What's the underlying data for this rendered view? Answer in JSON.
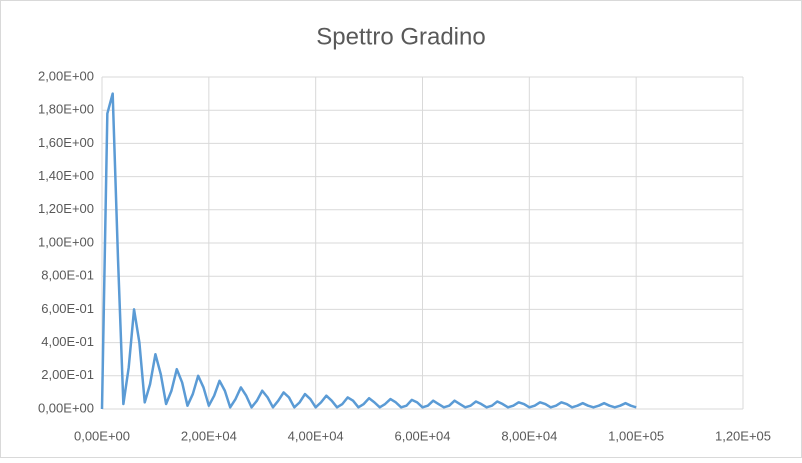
{
  "chart_data": {
    "type": "line",
    "title": "Spettro Gradino",
    "x": [
      0,
      1000,
      2000,
      3000,
      4000,
      5000,
      6000,
      7000,
      8000,
      9000,
      10000,
      11000,
      12000,
      13000,
      14000,
      15000,
      16000,
      17000,
      18000,
      19000,
      20000,
      21000,
      22000,
      23000,
      24000,
      25000,
      26000,
      27000,
      28000,
      29000,
      30000,
      31000,
      32000,
      33000,
      34000,
      35000,
      36000,
      37000,
      38000,
      39000,
      40000,
      41000,
      42000,
      43000,
      44000,
      45000,
      46000,
      47000,
      48000,
      49000,
      50000,
      51000,
      52000,
      53000,
      54000,
      55000,
      56000,
      57000,
      58000,
      59000,
      60000,
      61000,
      62000,
      63000,
      64000,
      65000,
      66000,
      67000,
      68000,
      69000,
      70000,
      71000,
      72000,
      73000,
      74000,
      75000,
      76000,
      77000,
      78000,
      79000,
      80000,
      81000,
      82000,
      83000,
      84000,
      85000,
      86000,
      87000,
      88000,
      89000,
      90000,
      91000,
      92000,
      93000,
      94000,
      95000,
      96000,
      97000,
      98000,
      99000,
      100000
    ],
    "series": [
      {
        "color": "#5b9bd5",
        "values": [
          0,
          1.78,
          1.9,
          0.9,
          0.03,
          0.25,
          0.6,
          0.4,
          0.04,
          0.15,
          0.33,
          0.21,
          0.03,
          0.11,
          0.24,
          0.16,
          0.02,
          0.09,
          0.2,
          0.13,
          0.02,
          0.08,
          0.17,
          0.11,
          0.01,
          0.06,
          0.13,
          0.08,
          0.01,
          0.05,
          0.11,
          0.07,
          0.01,
          0.05,
          0.1,
          0.07,
          0.01,
          0.04,
          0.09,
          0.06,
          0.01,
          0.04,
          0.08,
          0.05,
          0.01,
          0.03,
          0.07,
          0.05,
          0.01,
          0.03,
          0.065,
          0.04,
          0.01,
          0.03,
          0.06,
          0.04,
          0.01,
          0.02,
          0.055,
          0.04,
          0.01,
          0.02,
          0.05,
          0.03,
          0.01,
          0.02,
          0.05,
          0.03,
          0.01,
          0.02,
          0.045,
          0.03,
          0.01,
          0.02,
          0.045,
          0.03,
          0.01,
          0.02,
          0.04,
          0.03,
          0.01,
          0.02,
          0.04,
          0.03,
          0.01,
          0.02,
          0.04,
          0.03,
          0.01,
          0.02,
          0.035,
          0.02,
          0.01,
          0.02,
          0.035,
          0.02,
          0.01,
          0.02,
          0.035,
          0.02,
          0.01
        ]
      }
    ],
    "xlim": [
      0,
      120000
    ],
    "xticks": [
      {
        "value": 0,
        "label": "0,00E+00"
      },
      {
        "value": 20000,
        "label": "2,00E+04"
      },
      {
        "value": 40000,
        "label": "4,00E+04"
      },
      {
        "value": 60000,
        "label": "6,00E+04"
      },
      {
        "value": 80000,
        "label": "8,00E+04"
      },
      {
        "value": 100000,
        "label": "1,00E+05"
      },
      {
        "value": 120000,
        "label": "1,20E+05"
      }
    ],
    "ylim": [
      0,
      2
    ],
    "yticks": [
      {
        "value": 0,
        "label": "0,00E+00"
      },
      {
        "value": 0.2,
        "label": "2,00E-01"
      },
      {
        "value": 0.4,
        "label": "4,00E-01"
      },
      {
        "value": 0.6,
        "label": "6,00E-01"
      },
      {
        "value": 0.8,
        "label": "8,00E-01"
      },
      {
        "value": 1,
        "label": "1,00E+00"
      },
      {
        "value": 1.2,
        "label": "1,20E+00"
      },
      {
        "value": 1.4,
        "label": "1,40E+00"
      },
      {
        "value": 1.6,
        "label": "1,60E+00"
      },
      {
        "value": 1.8,
        "label": "1,80E+00"
      },
      {
        "value": 2,
        "label": "2,00E+00"
      }
    ],
    "grid": true
  }
}
